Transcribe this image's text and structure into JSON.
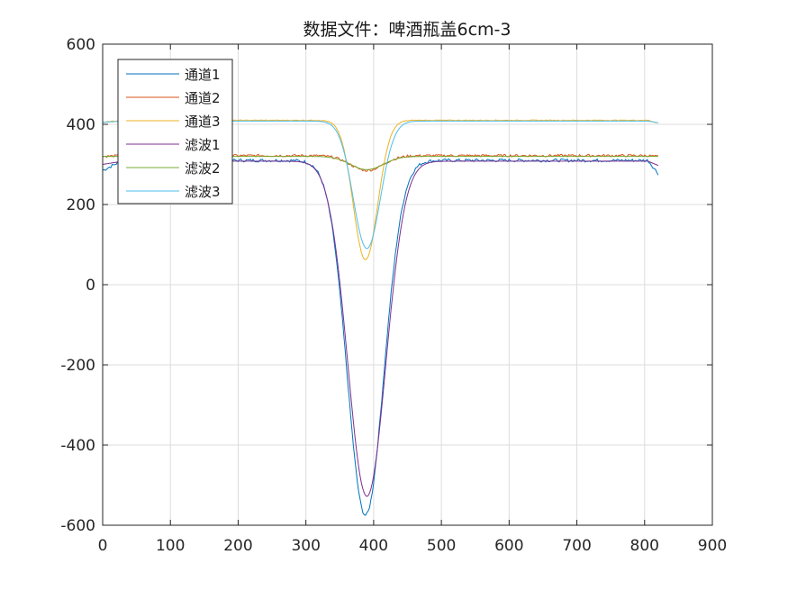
{
  "chart_data": {
    "type": "line",
    "title": "数据文件：啤酒瓶盖6cm-3",
    "xlabel": "",
    "ylabel": "",
    "xlim": [
      0,
      900
    ],
    "ylim": [
      -600,
      600
    ],
    "x_ticks": [
      "0",
      "100",
      "200",
      "300",
      "400",
      "500",
      "600",
      "700",
      "800",
      "900"
    ],
    "y_ticks": [
      "600",
      "400",
      "200",
      "0",
      "-200",
      "-400",
      "-600"
    ],
    "grid": true,
    "legend_position": "top-left",
    "x_range": [
      0,
      821
    ],
    "series": [
      {
        "name": "通道1",
        "color": "#0072BD",
        "base": 310,
        "min": -575,
        "center": 388,
        "width": 27,
        "noise": 4,
        "start": 285
      },
      {
        "name": "通道2",
        "color": "#D95319",
        "base": 322,
        "min": 285,
        "center": 390,
        "width": 24,
        "noise": 3,
        "start": 320
      },
      {
        "name": "通道3",
        "color": "#EDB120",
        "base": 410,
        "min": 62,
        "center": 388,
        "width": 18,
        "noise": 1,
        "start": 405
      },
      {
        "name": "滤波1",
        "color": "#7E2F8E",
        "base": 308,
        "min": -528,
        "center": 390,
        "width": 28,
        "noise": 0,
        "start": 300
      },
      {
        "name": "滤波2",
        "color": "#77AC30",
        "base": 320,
        "min": 287,
        "center": 390,
        "width": 24,
        "noise": 0,
        "start": 320
      },
      {
        "name": "滤波3",
        "color": "#4DBEEE",
        "base": 408,
        "min": 90,
        "center": 390,
        "width": 20,
        "noise": 0,
        "start": 405
      }
    ]
  }
}
